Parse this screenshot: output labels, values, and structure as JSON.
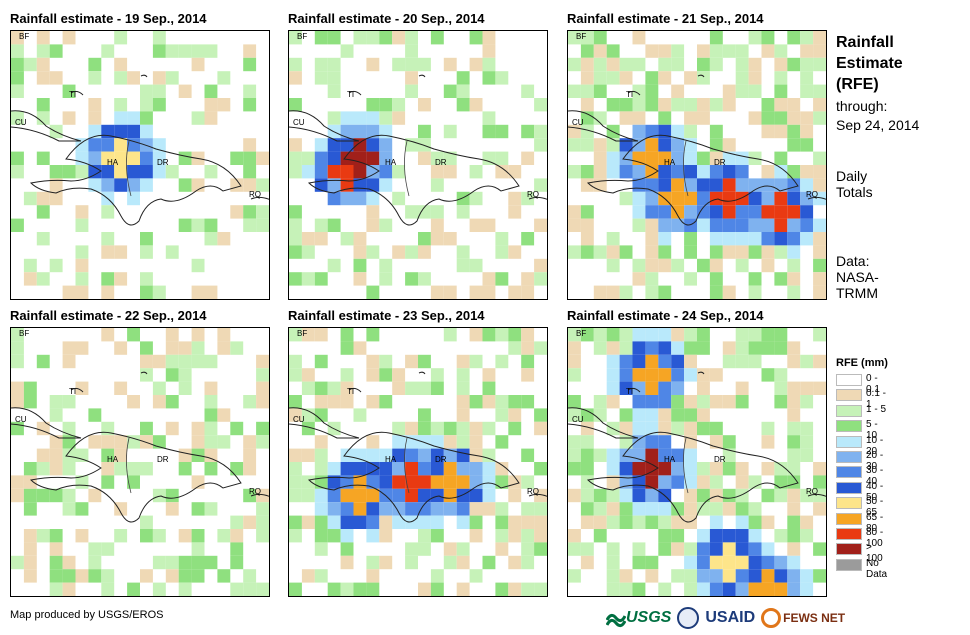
{
  "panels": [
    {
      "title": "Rainfall estimate - 19 Sep., 2014"
    },
    {
      "title": "Rainfall estimate - 20 Sep., 2014"
    },
    {
      "title": "Rainfall estimate - 21 Sep., 2014"
    },
    {
      "title": "Rainfall estimate - 22 Sep., 2014"
    },
    {
      "title": "Rainfall estimate - 23 Sep., 2014"
    },
    {
      "title": "Rainfall estimate - 24 Sep., 2014"
    }
  ],
  "map_labels": {
    "bf": "BF",
    "cu": "CU",
    "ti": "TI",
    "ha": "HA",
    "dr": "DR",
    "rq": "RQ"
  },
  "side": {
    "title": "Rainfall Estimate (RFE)",
    "through": "through:",
    "date": "Sep 24, 2014",
    "daily": "Daily Totals",
    "data": "Data: NASA-TRMM"
  },
  "legend": {
    "title": "RFE (mm)",
    "items": [
      {
        "label": "0 - 0.1",
        "color": "#ffffff"
      },
      {
        "label": "0.1 - 1",
        "color": "#efd9b5"
      },
      {
        "label": "1 - 5",
        "color": "#c6f2b8"
      },
      {
        "label": "5 - 10",
        "color": "#8fe07f"
      },
      {
        "label": "10 - 20",
        "color": "#b9e9fb"
      },
      {
        "label": "20 - 30",
        "color": "#7fb2ef"
      },
      {
        "label": "30 - 40",
        "color": "#4f86e6"
      },
      {
        "label": "40 - 50",
        "color": "#2959d4"
      },
      {
        "label": "50 - 65",
        "color": "#fde58a"
      },
      {
        "label": "65 - 80",
        "color": "#f6a524"
      },
      {
        "label": "80 - 100",
        "color": "#e93a12"
      },
      {
        "label": "> 100",
        "color": "#a1201a"
      },
      {
        "label": "No Data",
        "color": "#9b9b9b"
      }
    ]
  },
  "footer": "Map produced by USGS/EROS",
  "logos": {
    "usgs": "USGS",
    "usaid": "USAID",
    "fews": "FEWS NET"
  }
}
